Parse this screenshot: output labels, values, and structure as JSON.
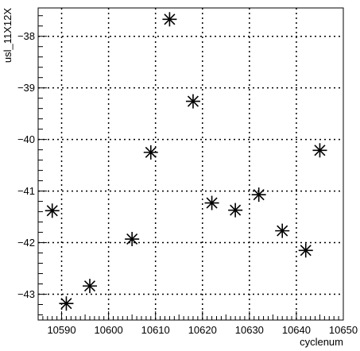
{
  "chart_data": {
    "type": "scatter",
    "title": "",
    "xlabel": "cyclenum",
    "ylabel": "usl_11X12X",
    "xlim": [
      10585,
      10650
    ],
    "ylim": [
      -43.5,
      -37.45
    ],
    "grid": true,
    "x_ticks": [
      10590,
      10600,
      10610,
      10620,
      10630,
      10640,
      10650
    ],
    "y_ticks": [
      -43,
      -42,
      -41,
      -40,
      -39,
      -38
    ],
    "x_tick_labels": [
      "10590",
      "10600",
      "10610",
      "10620",
      "10630",
      "10640",
      "10650"
    ],
    "y_tick_labels": [
      "−43",
      "−42",
      "−41",
      "−40",
      "−39",
      "−38"
    ],
    "marker": "star",
    "points": [
      {
        "x": 10588,
        "y": -41.38
      },
      {
        "x": 10591,
        "y": -43.18
      },
      {
        "x": 10596,
        "y": -42.84
      },
      {
        "x": 10605,
        "y": -41.93
      },
      {
        "x": 10609,
        "y": -40.25
      },
      {
        "x": 10613,
        "y": -37.67
      },
      {
        "x": 10618,
        "y": -39.26
      },
      {
        "x": 10622,
        "y": -41.23
      },
      {
        "x": 10627,
        "y": -41.37
      },
      {
        "x": 10632,
        "y": -41.07
      },
      {
        "x": 10637,
        "y": -41.77
      },
      {
        "x": 10642,
        "y": -42.15
      },
      {
        "x": 10645,
        "y": -40.21
      }
    ]
  }
}
